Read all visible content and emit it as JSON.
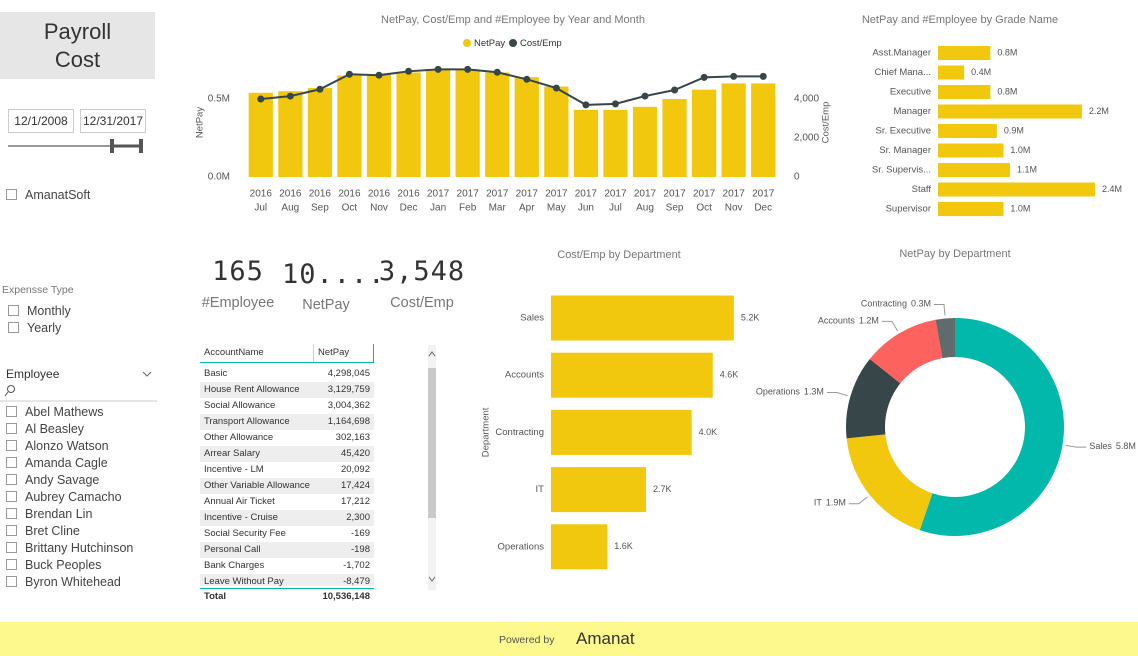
{
  "header": {
    "title": "Payroll Cost"
  },
  "filters": {
    "date_start": "12/1/2008",
    "date_end": "12/31/2017",
    "company": "AmanatSoft",
    "expense_type_label": "Expensse Type",
    "expense_types": [
      "Monthly",
      "Yearly"
    ],
    "employee_label": "Employee",
    "employees": [
      "Abel Mathews",
      "Al Beasley",
      "Alonzo Watson",
      "Amanda Cagle",
      "Andy Savage",
      "Aubrey Camacho",
      "Brendan Lin",
      "Bret Cline",
      "Brittany Hutchinson",
      "Buck Peoples",
      "Byron Whitehead"
    ]
  },
  "cards": [
    {
      "value": "165",
      "label": "#Employee"
    },
    {
      "value": "10....",
      "label": "NetPay"
    },
    {
      "value": "3,548",
      "label": "Cost/Emp"
    }
  ],
  "table": {
    "columns": [
      "AccountName",
      "NetPay"
    ],
    "rows": [
      [
        "Basic",
        "4,298,045"
      ],
      [
        "House Rent Allowance",
        "3,129,759"
      ],
      [
        "Social Allowance",
        "3,004,362"
      ],
      [
        "Transport Allowance",
        "1,164,698"
      ],
      [
        "Other Allowance",
        "302,163"
      ],
      [
        "Arrear Salary",
        "45,420"
      ],
      [
        "Incentive - LM",
        "20,092"
      ],
      [
        "Other Variable Allowance",
        "17,424"
      ],
      [
        "Annual Air Ticket",
        "17,212"
      ],
      [
        "Incentive - Cruise",
        "2,300"
      ],
      [
        "Social Security Fee",
        "-169"
      ],
      [
        "Personal Call",
        "-198"
      ],
      [
        "Bank Charges",
        "-1,702"
      ],
      [
        "Leave Without Pay",
        "-8,479"
      ]
    ],
    "total": [
      "Total",
      "10,536,148"
    ]
  },
  "chart_data": [
    {
      "type": "combo",
      "title": "NetPay, Cost/Emp and #Employee by Year and Month",
      "categories": [
        "Jul",
        "Aug",
        "Sep",
        "Oct",
        "Nov",
        "Dec",
        "Jan",
        "Feb",
        "Mar",
        "Apr",
        "May",
        "Jun",
        "Jul",
        "Aug",
        "Sep",
        "Oct",
        "Nov",
        "Dec"
      ],
      "years": [
        "2016",
        "2016",
        "2016",
        "2016",
        "2016",
        "2016",
        "2017",
        "2017",
        "2017",
        "2017",
        "2017",
        "2017",
        "2017",
        "2017",
        "2017",
        "2017",
        "2017",
        "2017"
      ],
      "series": [
        {
          "name": "NetPay",
          "kind": "bar",
          "color": "#F2C80F",
          "values": [
            0.54,
            0.55,
            0.57,
            0.65,
            0.66,
            0.67,
            0.69,
            0.69,
            0.67,
            0.64,
            0.58,
            0.43,
            0.43,
            0.45,
            0.5,
            0.56,
            0.6,
            0.6
          ]
        },
        {
          "name": "Cost/Emp",
          "kind": "line",
          "axis": "y2",
          "color": "#374649",
          "values": [
            4000,
            4150,
            4500,
            5270,
            5220,
            5420,
            5520,
            5520,
            5370,
            5010,
            4560,
            3700,
            3750,
            4150,
            4460,
            5110,
            5160,
            5160
          ]
        }
      ],
      "ylabel": "NetPay",
      "y2label": "Cost/Emp",
      "ylim": [
        0,
        0.75
      ],
      "yticks": [
        {
          "value": 0,
          "label": "0.0M"
        },
        {
          "value": 0.5,
          "label": "0.5M"
        }
      ],
      "y2lim": [
        0,
        6000
      ],
      "y2ticks": [
        0,
        {
          "value": 2000,
          "label": "2,000"
        },
        {
          "value": 4000,
          "label": "4,000"
        }
      ],
      "legend": "top"
    },
    {
      "type": "hbar",
      "title": "NetPay and #Employee by Grade Name",
      "categories": [
        "Asst.Manager",
        "Chief Mana...",
        "Executive",
        "Manager",
        "Sr. Executive",
        "Sr. Manager",
        "Sr. Supervis...",
        "Staff",
        "Supervisor"
      ],
      "values": [
        0.8,
        0.4,
        0.8,
        2.2,
        0.9,
        1.0,
        1.1,
        2.4,
        1.0
      ],
      "value_labels": [
        "0.8M",
        "0.4M",
        "0.8M",
        "2.2M",
        "0.9M",
        "1.0M",
        "1.1M",
        "2.4M",
        "1.0M"
      ],
      "color": "#F2C80F",
      "xlim": [
        0,
        2.4
      ]
    },
    {
      "type": "hbar",
      "title": "Cost/Emp by Department",
      "ylabel": "Department",
      "categories": [
        "Sales",
        "Accounts",
        "Contracting",
        "IT",
        "Operations"
      ],
      "values": [
        5200,
        4600,
        4000,
        2700,
        1600
      ],
      "value_labels": [
        "5.2K",
        "4.6K",
        "4.0K",
        "2.7K",
        "1.6K"
      ],
      "color": "#F2C80F",
      "xlim": [
        0,
        6000
      ]
    },
    {
      "type": "donut",
      "title": "NetPay by Department",
      "categories": [
        "Sales",
        "IT",
        "Operations",
        "Accounts",
        "Contracting"
      ],
      "values": [
        5.8,
        1.9,
        1.3,
        1.2,
        0.3
      ],
      "value_labels": [
        "5.8M",
        "1.9M",
        "1.3M",
        "1.2M",
        "0.3M"
      ],
      "colors": [
        "#01B8AA",
        "#F2C80F",
        "#374649",
        "#FD625E",
        "#5F6B6D"
      ]
    }
  ],
  "footer": {
    "powered_by": "Powered by",
    "brand": "Amanat"
  }
}
